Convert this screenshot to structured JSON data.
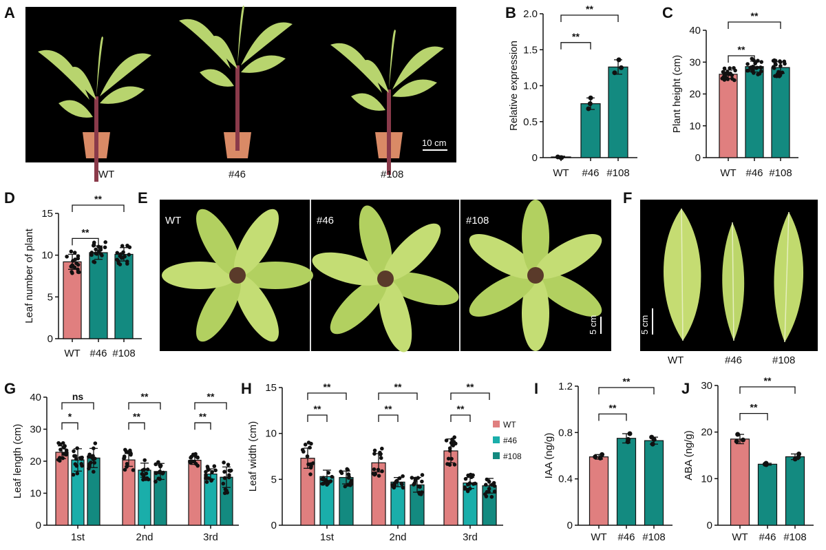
{
  "panel_letters": [
    "A",
    "B",
    "C",
    "D",
    "E",
    "F",
    "G",
    "H",
    "I",
    "J"
  ],
  "colors": {
    "WT": "#e07f7f",
    "#46": "#1aaeaa",
    "#108": "#138a80",
    "transgenic": "#138a80",
    "photo_bg": "#000000",
    "leaf": "#b9d86a",
    "pot": "#d98a66"
  },
  "photo_A": {
    "labels": [
      "WT",
      "#46",
      "#108"
    ],
    "scale_bar": "10 cm"
  },
  "photo_E": {
    "labels": [
      "WT",
      "#46",
      "#108"
    ],
    "scale_bar": "5 cm"
  },
  "photo_F": {
    "labels": [
      "WT",
      "#46",
      "#108"
    ],
    "scale_bar": "5 cm"
  },
  "chart_data": [
    {
      "id": "B",
      "type": "bar",
      "categories": [
        "WT",
        "#46",
        "#108"
      ],
      "values": [
        0.01,
        0.75,
        1.26
      ],
      "error": [
        0.01,
        0.08,
        0.1
      ],
      "points": [
        [
          0.0,
          0.0,
          0.01
        ],
        [
          0.68,
          0.75,
          0.83
        ],
        [
          1.18,
          1.25,
          1.36
        ]
      ],
      "ylabel": "Relative expression",
      "ylim": [
        0,
        2.0
      ],
      "yticks": [
        "0",
        "0.5",
        "1.0",
        "1.5",
        "2.0"
      ],
      "bar_colors": [
        "#138a80",
        "#138a80",
        "#138a80"
      ],
      "significance": [
        {
          "from": 0,
          "to": 1,
          "label": "**"
        },
        {
          "from": 0,
          "to": 2,
          "label": "**"
        }
      ]
    },
    {
      "id": "C",
      "type": "bar",
      "categories": [
        "WT",
        "#46",
        "#108"
      ],
      "values": [
        26.2,
        28.6,
        28.3
      ],
      "error": [
        1.3,
        1.7,
        1.8
      ],
      "ylabel": "Plant height (cm)",
      "ylim": [
        0,
        40
      ],
      "yticks": [
        "0",
        "10",
        "20",
        "30",
        "40"
      ],
      "bar_colors": [
        "#e07f7f",
        "#138a80",
        "#138a80"
      ],
      "significance": [
        {
          "from": 0,
          "to": 1,
          "label": "**"
        },
        {
          "from": 0,
          "to": 2,
          "label": "**"
        }
      ]
    },
    {
      "id": "D",
      "type": "bar",
      "categories": [
        "WT",
        "#46",
        "#108"
      ],
      "values": [
        9.2,
        10.3,
        10.1
      ],
      "error": [
        0.9,
        0.8,
        0.8
      ],
      "ylabel": "Leaf number of plant",
      "ylim": [
        0,
        15
      ],
      "yticks": [
        "0",
        "5",
        "10",
        "15"
      ],
      "bar_colors": [
        "#e07f7f",
        "#138a80",
        "#138a80"
      ],
      "significance": [
        {
          "from": 0,
          "to": 1,
          "label": "**"
        },
        {
          "from": 0,
          "to": 2,
          "label": "**"
        }
      ]
    },
    {
      "id": "G",
      "type": "grouped-bar",
      "categories": [
        "1st",
        "2nd",
        "3rd"
      ],
      "series": [
        {
          "name": "WT",
          "values": [
            22.8,
            20.4,
            20.3
          ],
          "error": [
            2.0,
            2.0,
            1.3
          ]
        },
        {
          "name": "#46",
          "values": [
            20.4,
            17.2,
            16.0
          ],
          "error": [
            3.5,
            2.2,
            1.6
          ]
        },
        {
          "name": "#108",
          "values": [
            21.0,
            16.8,
            15.0
          ],
          "error": [
            3.0,
            2.5,
            3.2
          ]
        }
      ],
      "ylabel": "Leaf length (cm)",
      "ylim": [
        0,
        40
      ],
      "yticks": [
        "0",
        "10",
        "20",
        "30",
        "40"
      ],
      "significance": [
        [
          {
            "from": 0,
            "to": 1,
            "label": "*"
          },
          {
            "from": 0,
            "to": 2,
            "label": "ns"
          }
        ],
        [
          {
            "from": 0,
            "to": 1,
            "label": "**"
          },
          {
            "from": 0,
            "to": 2,
            "label": "**"
          }
        ],
        [
          {
            "from": 0,
            "to": 1,
            "label": "**"
          },
          {
            "from": 0,
            "to": 2,
            "label": "**"
          }
        ]
      ]
    },
    {
      "id": "H",
      "type": "grouped-bar",
      "categories": [
        "1st",
        "2nd",
        "3rd"
      ],
      "series": [
        {
          "name": "WT",
          "values": [
            7.3,
            6.8,
            8.1
          ],
          "error": [
            1.1,
            1.0,
            1.3
          ]
        },
        {
          "name": "#46",
          "values": [
            5.3,
            4.7,
            4.6
          ],
          "error": [
            0.7,
            0.5,
            0.6
          ]
        },
        {
          "name": "#108",
          "values": [
            5.2,
            4.4,
            4.3
          ],
          "error": [
            0.7,
            0.8,
            0.8
          ]
        }
      ],
      "ylabel": "Leaf width (cm)",
      "ylim": [
        0,
        15
      ],
      "yticks": [
        "0",
        "5",
        "10",
        "15"
      ],
      "legend": [
        "WT",
        "#46",
        "#108"
      ],
      "legend_position": "right",
      "significance": [
        [
          {
            "from": 0,
            "to": 1,
            "label": "**"
          },
          {
            "from": 0,
            "to": 2,
            "label": "**"
          }
        ],
        [
          {
            "from": 0,
            "to": 1,
            "label": "**"
          },
          {
            "from": 0,
            "to": 2,
            "label": "**"
          }
        ],
        [
          {
            "from": 0,
            "to": 1,
            "label": "**"
          },
          {
            "from": 0,
            "to": 2,
            "label": "**"
          }
        ]
      ]
    },
    {
      "id": "I",
      "type": "bar",
      "categories": [
        "WT",
        "#46",
        "#108"
      ],
      "values": [
        0.59,
        0.75,
        0.73
      ],
      "error": [
        0.02,
        0.04,
        0.03
      ],
      "points": [
        [
          0.58,
          0.59,
          0.61
        ],
        [
          0.72,
          0.74,
          0.79
        ],
        [
          0.7,
          0.74,
          0.76
        ]
      ],
      "ylabel": "IAA (ng/g)",
      "ylim": [
        0,
        1.2
      ],
      "yticks": [
        "0",
        "0.4",
        "0.8",
        "1.2"
      ],
      "bar_colors": [
        "#e07f7f",
        "#138a80",
        "#138a80"
      ],
      "significance": [
        {
          "from": 0,
          "to": 1,
          "label": "**"
        },
        {
          "from": 0,
          "to": 2,
          "label": "**"
        }
      ]
    },
    {
      "id": "J",
      "type": "bar",
      "categories": [
        "WT",
        "#46",
        "#108"
      ],
      "values": [
        18.5,
        13.1,
        14.7
      ],
      "error": [
        1.0,
        0.2,
        0.6
      ],
      "points": [
        [
          18.0,
          18.3,
          19.5
        ],
        [
          13.0,
          13.1,
          13.3
        ],
        [
          14.2,
          14.6,
          15.3
        ]
      ],
      "ylabel": "ABA (ng/g)",
      "ylim": [
        0,
        30
      ],
      "yticks": [
        "0",
        "10",
        "20",
        "30"
      ],
      "bar_colors": [
        "#e07f7f",
        "#138a80",
        "#138a80"
      ],
      "significance": [
        {
          "from": 0,
          "to": 1,
          "label": "**"
        },
        {
          "from": 0,
          "to": 2,
          "label": "**"
        }
      ]
    }
  ]
}
